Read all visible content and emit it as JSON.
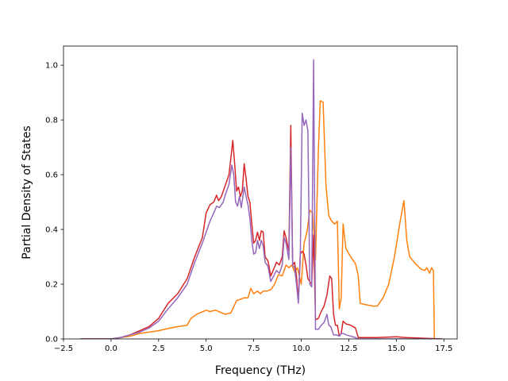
{
  "chart_data": {
    "type": "line",
    "title": "",
    "xlabel": "Frequency (THz)",
    "ylabel": "Partial Density of States",
    "xlim": [
      -2.5,
      18.2
    ],
    "ylim": [
      0.0,
      1.07
    ],
    "xticks": [
      -2.5,
      0.0,
      2.5,
      5.0,
      7.5,
      10.0,
      12.5,
      15.0,
      17.5
    ],
    "xtick_labels": [
      "−2.5",
      "0.0",
      "2.5",
      "5.0",
      "7.5",
      "10.0",
      "12.5",
      "15.0",
      "17.5"
    ],
    "yticks": [
      0.0,
      0.2,
      0.4,
      0.6,
      0.8,
      1.0
    ],
    "ytick_labels": [
      "0.0",
      "0.2",
      "0.4",
      "0.6",
      "0.8",
      "1.0"
    ],
    "grid": false,
    "legend": "none",
    "series": [
      {
        "color": "#ff7f0e",
        "points": [
          [
            -1.6,
            0
          ],
          [
            0,
            0
          ],
          [
            0.5,
            0.005
          ],
          [
            1.0,
            0.01
          ],
          [
            1.5,
            0.02
          ],
          [
            2.0,
            0.025
          ],
          [
            2.5,
            0.03
          ],
          [
            3.0,
            0.038
          ],
          [
            3.5,
            0.045
          ],
          [
            4.0,
            0.05
          ],
          [
            4.2,
            0.075
          ],
          [
            4.5,
            0.09
          ],
          [
            5.0,
            0.105
          ],
          [
            5.2,
            0.1
          ],
          [
            5.5,
            0.105
          ],
          [
            6.0,
            0.09
          ],
          [
            6.3,
            0.095
          ],
          [
            6.6,
            0.14
          ],
          [
            6.8,
            0.145
          ],
          [
            7.0,
            0.15
          ],
          [
            7.2,
            0.15
          ],
          [
            7.35,
            0.185
          ],
          [
            7.5,
            0.165
          ],
          [
            7.7,
            0.175
          ],
          [
            7.85,
            0.165
          ],
          [
            8.0,
            0.175
          ],
          [
            8.2,
            0.175
          ],
          [
            8.4,
            0.18
          ],
          [
            8.6,
            0.2
          ],
          [
            8.8,
            0.235
          ],
          [
            9.0,
            0.23
          ],
          [
            9.2,
            0.27
          ],
          [
            9.35,
            0.26
          ],
          [
            9.5,
            0.27
          ],
          [
            9.65,
            0.245
          ],
          [
            9.8,
            0.26
          ],
          [
            10.0,
            0.2
          ],
          [
            10.15,
            0.35
          ],
          [
            10.3,
            0.39
          ],
          [
            10.45,
            0.47
          ],
          [
            10.6,
            0.46
          ],
          [
            10.75,
            0.29
          ],
          [
            10.9,
            0.69
          ],
          [
            11.0,
            0.87
          ],
          [
            11.15,
            0.865
          ],
          [
            11.3,
            0.56
          ],
          [
            11.45,
            0.45
          ],
          [
            11.6,
            0.43
          ],
          [
            11.75,
            0.42
          ],
          [
            11.9,
            0.43
          ],
          [
            12.0,
            0.11
          ],
          [
            12.1,
            0.15
          ],
          [
            12.2,
            0.42
          ],
          [
            12.35,
            0.33
          ],
          [
            12.6,
            0.3
          ],
          [
            12.85,
            0.275
          ],
          [
            13.0,
            0.23
          ],
          [
            13.1,
            0.13
          ],
          [
            13.4,
            0.125
          ],
          [
            13.8,
            0.12
          ],
          [
            14.0,
            0.12
          ],
          [
            14.3,
            0.15
          ],
          [
            14.6,
            0.2
          ],
          [
            14.9,
            0.3
          ],
          [
            15.2,
            0.43
          ],
          [
            15.4,
            0.505
          ],
          [
            15.55,
            0.36
          ],
          [
            15.7,
            0.3
          ],
          [
            16.0,
            0.275
          ],
          [
            16.3,
            0.255
          ],
          [
            16.5,
            0.25
          ],
          [
            16.6,
            0.26
          ],
          [
            16.75,
            0.24
          ],
          [
            16.85,
            0.26
          ],
          [
            16.95,
            0.25
          ],
          [
            17.0,
            0
          ],
          [
            17.4,
            0
          ]
        ]
      },
      {
        "color": "#d62728",
        "points": [
          [
            -1.6,
            0
          ],
          [
            0,
            0
          ],
          [
            0.5,
            0.005
          ],
          [
            1.0,
            0.015
          ],
          [
            1.5,
            0.03
          ],
          [
            2.0,
            0.045
          ],
          [
            2.5,
            0.075
          ],
          [
            3.0,
            0.13
          ],
          [
            3.5,
            0.165
          ],
          [
            4.0,
            0.22
          ],
          [
            4.4,
            0.3
          ],
          [
            4.8,
            0.37
          ],
          [
            5.0,
            0.46
          ],
          [
            5.2,
            0.49
          ],
          [
            5.4,
            0.5
          ],
          [
            5.55,
            0.525
          ],
          [
            5.65,
            0.505
          ],
          [
            5.8,
            0.52
          ],
          [
            6.0,
            0.56
          ],
          [
            6.2,
            0.6
          ],
          [
            6.3,
            0.66
          ],
          [
            6.4,
            0.725
          ],
          [
            6.5,
            0.64
          ],
          [
            6.6,
            0.54
          ],
          [
            6.7,
            0.555
          ],
          [
            6.8,
            0.52
          ],
          [
            6.9,
            0.54
          ],
          [
            7.0,
            0.64
          ],
          [
            7.1,
            0.585
          ],
          [
            7.2,
            0.52
          ],
          [
            7.3,
            0.5
          ],
          [
            7.4,
            0.42
          ],
          [
            7.5,
            0.35
          ],
          [
            7.6,
            0.36
          ],
          [
            7.7,
            0.39
          ],
          [
            7.8,
            0.36
          ],
          [
            7.9,
            0.395
          ],
          [
            8.0,
            0.39
          ],
          [
            8.1,
            0.3
          ],
          [
            8.25,
            0.285
          ],
          [
            8.4,
            0.23
          ],
          [
            8.55,
            0.255
          ],
          [
            8.7,
            0.28
          ],
          [
            8.85,
            0.27
          ],
          [
            9.0,
            0.3
          ],
          [
            9.1,
            0.395
          ],
          [
            9.2,
            0.37
          ],
          [
            9.35,
            0.32
          ],
          [
            9.45,
            0.78
          ],
          [
            9.55,
            0.27
          ],
          [
            9.65,
            0.28
          ],
          [
            9.75,
            0.23
          ],
          [
            9.85,
            0.14
          ],
          [
            9.95,
            0.31
          ],
          [
            10.05,
            0.32
          ],
          [
            10.15,
            0.31
          ],
          [
            10.25,
            0.27
          ],
          [
            10.35,
            0.22
          ],
          [
            10.45,
            0.21
          ],
          [
            10.55,
            0.2
          ],
          [
            10.65,
            0.38
          ],
          [
            10.75,
            0.07
          ],
          [
            10.9,
            0.075
          ],
          [
            11.05,
            0.1
          ],
          [
            11.2,
            0.12
          ],
          [
            11.35,
            0.16
          ],
          [
            11.5,
            0.23
          ],
          [
            11.6,
            0.22
          ],
          [
            11.7,
            0.09
          ],
          [
            11.8,
            0.05
          ],
          [
            11.9,
            0.05
          ],
          [
            12.0,
            0.01
          ],
          [
            12.1,
            0.02
          ],
          [
            12.2,
            0.065
          ],
          [
            12.35,
            0.055
          ],
          [
            12.6,
            0.05
          ],
          [
            12.85,
            0.04
          ],
          [
            13.0,
            0.005
          ],
          [
            14.0,
            0.005
          ],
          [
            15.0,
            0.008
          ],
          [
            15.5,
            0.005
          ],
          [
            17.4,
            0
          ]
        ]
      },
      {
        "color": "#9467bd",
        "points": [
          [
            -1.6,
            0
          ],
          [
            0,
            0
          ],
          [
            0.5,
            0.005
          ],
          [
            1.0,
            0.015
          ],
          [
            1.5,
            0.025
          ],
          [
            2.0,
            0.04
          ],
          [
            2.5,
            0.065
          ],
          [
            3.0,
            0.11
          ],
          [
            3.5,
            0.15
          ],
          [
            4.0,
            0.2
          ],
          [
            4.4,
            0.28
          ],
          [
            4.8,
            0.35
          ],
          [
            5.0,
            0.39
          ],
          [
            5.2,
            0.43
          ],
          [
            5.4,
            0.46
          ],
          [
            5.55,
            0.485
          ],
          [
            5.7,
            0.48
          ],
          [
            5.9,
            0.5
          ],
          [
            6.0,
            0.525
          ],
          [
            6.2,
            0.565
          ],
          [
            6.35,
            0.635
          ],
          [
            6.45,
            0.6
          ],
          [
            6.55,
            0.5
          ],
          [
            6.65,
            0.485
          ],
          [
            6.75,
            0.52
          ],
          [
            6.85,
            0.48
          ],
          [
            7.0,
            0.555
          ],
          [
            7.1,
            0.52
          ],
          [
            7.2,
            0.49
          ],
          [
            7.3,
            0.44
          ],
          [
            7.4,
            0.36
          ],
          [
            7.5,
            0.31
          ],
          [
            7.6,
            0.315
          ],
          [
            7.7,
            0.36
          ],
          [
            7.8,
            0.33
          ],
          [
            7.9,
            0.36
          ],
          [
            8.0,
            0.34
          ],
          [
            8.1,
            0.28
          ],
          [
            8.25,
            0.265
          ],
          [
            8.4,
            0.21
          ],
          [
            8.55,
            0.23
          ],
          [
            8.7,
            0.25
          ],
          [
            8.85,
            0.24
          ],
          [
            9.0,
            0.27
          ],
          [
            9.1,
            0.37
          ],
          [
            9.2,
            0.35
          ],
          [
            9.35,
            0.29
          ],
          [
            9.45,
            0.7
          ],
          [
            9.55,
            0.27
          ],
          [
            9.65,
            0.26
          ],
          [
            9.75,
            0.2
          ],
          [
            9.85,
            0.13
          ],
          [
            9.95,
            0.3
          ],
          [
            10.05,
            0.825
          ],
          [
            10.15,
            0.78
          ],
          [
            10.25,
            0.8
          ],
          [
            10.35,
            0.76
          ],
          [
            10.45,
            0.2
          ],
          [
            10.55,
            0.19
          ],
          [
            10.65,
            1.02
          ],
          [
            10.75,
            0.035
          ],
          [
            10.9,
            0.035
          ],
          [
            11.05,
            0.05
          ],
          [
            11.2,
            0.06
          ],
          [
            11.35,
            0.09
          ],
          [
            11.45,
            0.05
          ],
          [
            11.55,
            0.045
          ],
          [
            11.7,
            0.015
          ],
          [
            11.85,
            0.015
          ],
          [
            12.0,
            0.01
          ],
          [
            12.1,
            0.02
          ],
          [
            12.2,
            0.02
          ],
          [
            12.35,
            0.015
          ],
          [
            12.6,
            0.01
          ],
          [
            12.85,
            0.005
          ],
          [
            13.0,
            0
          ],
          [
            17.4,
            0
          ]
        ]
      }
    ]
  }
}
